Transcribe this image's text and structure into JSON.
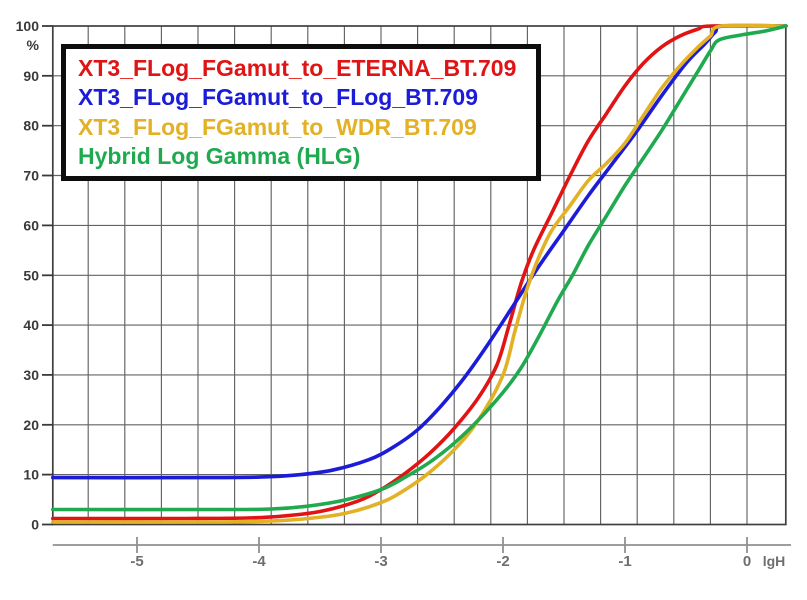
{
  "legend": {
    "items": [
      {
        "label": "XT3_FLog_FGamut_to_ETERNA_BT.709",
        "color": "#e01414"
      },
      {
        "label": "XT3_FLog_FGamut_to_FLog_BT.709",
        "color": "#1c1cd8"
      },
      {
        "label": "XT3_FLog_FGamut_to_WDR_BT.709",
        "color": "#e3b125"
      },
      {
        "label": "Hybrid Log Gamma (HLG)",
        "color": "#1faa4f"
      }
    ]
  },
  "colors": {
    "background": "#ffffff",
    "grid": "#636363",
    "plot_border": "#3f3f3f",
    "axis_line": "#909090",
    "y_tick_label": "#3a3a3a",
    "x_tick_label": "#6e6e6e",
    "legend_border": "#0d0d0d"
  },
  "chart_data": {
    "type": "line",
    "title": "",
    "xlabel": "lgH",
    "ylabel": "%",
    "xlim": [
      -5.69,
      0.32
    ],
    "ylim": [
      0,
      100
    ],
    "x_ticks": [
      -5,
      -4,
      -3,
      -2,
      -1,
      0
    ],
    "y_ticks": [
      0,
      10,
      20,
      30,
      40,
      50,
      60,
      70,
      80,
      90,
      100
    ],
    "x_gridline_step": 0.3,
    "y_gridline_step": 10,
    "grid": true,
    "legend_position": "top-left",
    "series": [
      {
        "key": "eterna_bt709",
        "name": "XT3_FLog_FGamut_to_ETERNA_BT.709",
        "color": "#e01414",
        "points": [
          [
            -5.69,
            1.2
          ],
          [
            -4.6,
            1.2
          ],
          [
            -4.1,
            1.3
          ],
          [
            -3.8,
            1.7
          ],
          [
            -3.5,
            2.6
          ],
          [
            -3.2,
            4.6
          ],
          [
            -3.0,
            7.0
          ],
          [
            -2.8,
            10.3
          ],
          [
            -2.6,
            14.3
          ],
          [
            -2.4,
            19.3
          ],
          [
            -2.2,
            25.5
          ],
          [
            -2.05,
            32.0
          ],
          [
            -1.95,
            40.0
          ],
          [
            -1.85,
            48.5
          ],
          [
            -1.75,
            55.0
          ],
          [
            -1.6,
            62.5
          ],
          [
            -1.45,
            70.0
          ],
          [
            -1.3,
            77.0
          ],
          [
            -1.15,
            82.5
          ],
          [
            -1.0,
            88.0
          ],
          [
            -0.85,
            92.5
          ],
          [
            -0.7,
            95.8
          ],
          [
            -0.55,
            98.0
          ],
          [
            -0.4,
            99.4
          ],
          [
            -0.29,
            100
          ],
          [
            0.32,
            100
          ]
        ]
      },
      {
        "key": "flog_bt709",
        "name": "XT3_FLog_FGamut_to_FLog_BT.709",
        "color": "#1c1cd8",
        "points": [
          [
            -5.69,
            9.4
          ],
          [
            -4.5,
            9.4
          ],
          [
            -4.0,
            9.5
          ],
          [
            -3.7,
            9.9
          ],
          [
            -3.4,
            10.9
          ],
          [
            -3.1,
            13.0
          ],
          [
            -2.9,
            15.5
          ],
          [
            -2.7,
            19.0
          ],
          [
            -2.5,
            24.0
          ],
          [
            -2.3,
            30.0
          ],
          [
            -2.1,
            37.0
          ],
          [
            -1.9,
            44.5
          ],
          [
            -1.7,
            52.0
          ],
          [
            -1.5,
            59.0
          ],
          [
            -1.3,
            66.0
          ],
          [
            -1.1,
            72.5
          ],
          [
            -0.9,
            79.0
          ],
          [
            -0.7,
            86.0
          ],
          [
            -0.5,
            92.5
          ],
          [
            -0.35,
            96.3
          ],
          [
            -0.26,
            98.8
          ],
          [
            -0.19,
            100
          ],
          [
            0.32,
            100
          ]
        ]
      },
      {
        "key": "wdr_bt709",
        "name": "XT3_FLog_FGamut_to_WDR_BT.709",
        "color": "#e3b125",
        "points": [
          [
            -5.69,
            0.5
          ],
          [
            -4.4,
            0.5
          ],
          [
            -3.9,
            0.7
          ],
          [
            -3.6,
            1.2
          ],
          [
            -3.3,
            2.2
          ],
          [
            -3.0,
            4.4
          ],
          [
            -2.8,
            7.0
          ],
          [
            -2.6,
            10.5
          ],
          [
            -2.4,
            15.0
          ],
          [
            -2.2,
            21.0
          ],
          [
            -2.0,
            30.0
          ],
          [
            -1.9,
            39.0
          ],
          [
            -1.8,
            47.5
          ],
          [
            -1.7,
            54.0
          ],
          [
            -1.6,
            59.0
          ],
          [
            -1.45,
            64.0
          ],
          [
            -1.3,
            69.0
          ],
          [
            -1.15,
            72.5
          ],
          [
            -1.0,
            76.5
          ],
          [
            -0.85,
            82.0
          ],
          [
            -0.7,
            87.5
          ],
          [
            -0.55,
            92.0
          ],
          [
            -0.4,
            95.8
          ],
          [
            -0.3,
            98.0
          ],
          [
            -0.21,
            100
          ],
          [
            0.32,
            100
          ]
        ]
      },
      {
        "key": "hlg",
        "name": "Hybrid Log Gamma (HLG)",
        "color": "#1faa4f",
        "points": [
          [
            -5.69,
            3.0
          ],
          [
            -4.3,
            3.0
          ],
          [
            -3.9,
            3.1
          ],
          [
            -3.6,
            3.7
          ],
          [
            -3.3,
            4.9
          ],
          [
            -3.0,
            7.0
          ],
          [
            -2.8,
            9.5
          ],
          [
            -2.6,
            12.5
          ],
          [
            -2.4,
            16.3
          ],
          [
            -2.2,
            21.0
          ],
          [
            -2.0,
            26.5
          ],
          [
            -1.85,
            31.5
          ],
          [
            -1.7,
            38.0
          ],
          [
            -1.55,
            45.0
          ],
          [
            -1.43,
            50.0
          ],
          [
            -1.3,
            56.0
          ],
          [
            -1.15,
            62.0
          ],
          [
            -1.0,
            68.0
          ],
          [
            -0.85,
            73.5
          ],
          [
            -0.7,
            79.0
          ],
          [
            -0.55,
            85.0
          ],
          [
            -0.4,
            91.0
          ],
          [
            -0.3,
            95.0
          ],
          [
            -0.23,
            97.2
          ],
          [
            -0.05,
            98.2
          ],
          [
            0.15,
            99.0
          ],
          [
            0.32,
            100
          ]
        ]
      }
    ]
  }
}
